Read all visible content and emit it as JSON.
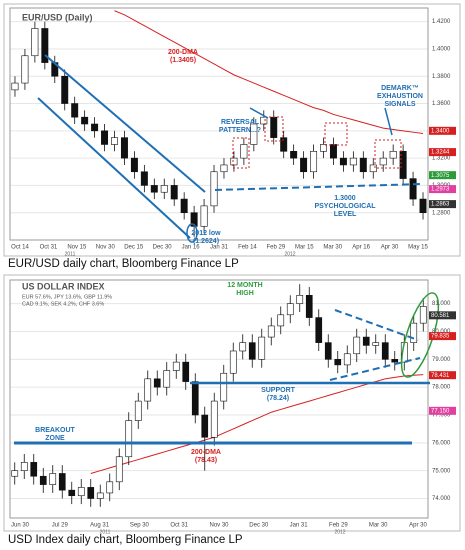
{
  "chart_data": [
    {
      "type": "candlestick",
      "title": "EUR/USD (Daily)",
      "caption": "EUR/USD daily chart, Bloomberg Finance LP",
      "open": [
        1.37,
        1.375,
        1.395,
        1.415,
        1.39,
        1.38,
        1.36,
        1.35,
        1.345,
        1.34,
        1.33,
        1.335,
        1.32,
        1.31,
        1.3,
        1.295,
        1.3,
        1.29,
        1.28,
        1.27,
        1.285,
        1.31,
        1.315,
        1.32,
        1.33,
        1.345,
        1.35,
        1.335,
        1.325,
        1.32,
        1.31,
        1.325,
        1.33,
        1.32,
        1.315,
        1.32,
        1.31,
        1.315,
        1.32,
        1.325,
        1.305,
        1.29
      ],
      "high": [
        1.38,
        1.4,
        1.42,
        1.42,
        1.395,
        1.385,
        1.365,
        1.355,
        1.35,
        1.345,
        1.34,
        1.34,
        1.325,
        1.315,
        1.305,
        1.305,
        1.305,
        1.295,
        1.285,
        1.29,
        1.315,
        1.32,
        1.325,
        1.335,
        1.35,
        1.355,
        1.355,
        1.34,
        1.33,
        1.325,
        1.33,
        1.335,
        1.335,
        1.325,
        1.325,
        1.325,
        1.32,
        1.325,
        1.33,
        1.33,
        1.31,
        1.295
      ],
      "low": [
        1.365,
        1.37,
        1.39,
        1.385,
        1.375,
        1.355,
        1.345,
        1.34,
        1.335,
        1.325,
        1.325,
        1.315,
        1.305,
        1.295,
        1.29,
        1.29,
        1.285,
        1.275,
        1.2624,
        1.265,
        1.28,
        1.305,
        1.31,
        1.315,
        1.325,
        1.34,
        1.33,
        1.32,
        1.315,
        1.305,
        1.305,
        1.32,
        1.315,
        1.31,
        1.31,
        1.305,
        1.305,
        1.31,
        1.315,
        1.3,
        1.285,
        1.275
      ],
      "close": [
        1.375,
        1.395,
        1.415,
        1.39,
        1.38,
        1.36,
        1.35,
        1.345,
        1.34,
        1.33,
        1.335,
        1.32,
        1.31,
        1.3,
        1.295,
        1.3,
        1.29,
        1.28,
        1.27,
        1.285,
        1.31,
        1.315,
        1.32,
        1.33,
        1.345,
        1.35,
        1.335,
        1.325,
        1.32,
        1.31,
        1.325,
        1.33,
        1.32,
        1.315,
        1.32,
        1.31,
        1.315,
        1.32,
        1.325,
        1.305,
        1.29,
        1.28
      ],
      "series": [
        {
          "name": "200-DMA",
          "color": "#d62020",
          "values": [
            null,
            null,
            null,
            null,
            null,
            null,
            null,
            null,
            null,
            null,
            1.428,
            1.425,
            1.421,
            1.417,
            1.413,
            1.409,
            1.405,
            1.401,
            1.397,
            1.393,
            1.389,
            1.385,
            1.381,
            1.378,
            1.375,
            1.372,
            1.369,
            1.366,
            1.363,
            1.36,
            1.357,
            1.355,
            1.352,
            1.35,
            1.348,
            1.346,
            1.344,
            1.342,
            1.341,
            1.34,
            1.339,
            1.338
          ]
        }
      ],
      "ylim": [
        1.26,
        1.43
      ],
      "yticks": [
        {
          "value": 1.28,
          "label": "1.2800"
        },
        {
          "value": 1.3,
          "label": "1.3000"
        },
        {
          "value": 1.32,
          "label": "1.3200"
        },
        {
          "value": 1.34,
          "label": "1.3400"
        },
        {
          "value": 1.36,
          "label": "1.3600"
        },
        {
          "value": 1.38,
          "label": "1.3800"
        },
        {
          "value": 1.4,
          "label": "1.4000"
        },
        {
          "value": 1.42,
          "label": "1.4200"
        }
      ],
      "price_tags": [
        {
          "value": 1.34,
          "label": "1.3400",
          "color": "#d62020"
        },
        {
          "value": 1.3244,
          "label": "1.3244",
          "color": "#d62020"
        },
        {
          "value": 1.3075,
          "label": "1.3075",
          "color": "#2e9b3a"
        },
        {
          "value": 1.2973,
          "label": "1.2973",
          "color": "#e040a0"
        },
        {
          "value": 1.2863,
          "label": "1.2863",
          "color": "#333333"
        }
      ],
      "xtick_labels": [
        "Oct 14",
        "Oct 31",
        "Nov 15",
        "Nov 30",
        "Dec 15",
        "Dec 30",
        "Jan 16",
        "Jan 31",
        "Feb 14",
        "Feb 29",
        "Mar 15",
        "Mar 30",
        "Apr 16",
        "Apr 30",
        "May 15"
      ],
      "year_labels": [
        "2011",
        "2012"
      ],
      "annotations": [
        {
          "lines": [
            "200-DMA",
            "(1.3405)"
          ],
          "color": "#d62020"
        },
        {
          "lines": [
            "REVERSAL",
            "PATTERN...?"
          ],
          "color": "#1f6fb5"
        },
        {
          "lines": [
            "DEMARK™",
            "EXHAUSTION",
            "SIGNALS"
          ],
          "color": "#1f6fb5"
        },
        {
          "lines": [
            "1.3000",
            "PSYCHOLOGICAL",
            "LEVEL"
          ],
          "color": "#1f6fb5"
        },
        {
          "lines": [
            "2012 low",
            "(1.2624)"
          ],
          "color": "#1f6fb5"
        }
      ]
    },
    {
      "type": "candlestick",
      "title": "US DOLLAR INDEX",
      "subtitle": [
        "EUR 57.6%, JPY 13.6%, GBP 11.9%",
        "CAD 9.1%, SEK 4.2%, CHF 3.6%"
      ],
      "caption": "USD Index daily chart, Bloomberg Finance LP",
      "open": [
        74.8,
        75.0,
        75.3,
        74.8,
        74.5,
        74.9,
        74.3,
        74.1,
        74.4,
        74.0,
        74.2,
        74.6,
        75.5,
        76.8,
        77.5,
        78.3,
        78.0,
        78.6,
        78.9,
        78.2,
        77.0,
        76.2,
        77.5,
        78.5,
        79.3,
        79.6,
        79.0,
        79.8,
        80.2,
        80.6,
        81.0,
        81.3,
        80.5,
        79.6,
        79.0,
        78.8,
        79.2,
        79.8,
        79.5,
        79.6,
        79.0,
        78.9,
        79.6,
        80.3
      ],
      "high": [
        75.3,
        75.6,
        75.6,
        75.1,
        75.2,
        75.2,
        74.6,
        74.7,
        74.7,
        74.5,
        74.9,
        75.8,
        77.1,
        77.8,
        78.6,
        78.6,
        78.9,
        79.2,
        79.2,
        78.5,
        77.3,
        77.8,
        78.8,
        79.6,
        79.9,
        79.9,
        80.1,
        80.5,
        80.9,
        81.3,
        81.7,
        81.6,
        80.8,
        79.9,
        79.3,
        79.5,
        80.1,
        80.1,
        79.9,
        79.9,
        79.3,
        79.9,
        80.6,
        81.2
      ],
      "low": [
        74.5,
        74.7,
        74.5,
        74.2,
        74.2,
        74.0,
        73.8,
        73.8,
        73.7,
        73.7,
        73.9,
        74.3,
        75.2,
        76.5,
        77.2,
        77.7,
        77.7,
        78.3,
        77.9,
        76.7,
        75.0,
        75.9,
        77.2,
        78.2,
        79.0,
        78.7,
        78.7,
        79.5,
        79.9,
        80.3,
        80.7,
        80.2,
        79.3,
        78.7,
        78.5,
        78.5,
        78.9,
        79.2,
        79.2,
        78.7,
        78.6,
        78.6,
        79.3,
        80.0
      ],
      "close": [
        75.0,
        75.3,
        74.8,
        74.5,
        74.9,
        74.3,
        74.1,
        74.4,
        74.0,
        74.2,
        74.6,
        75.5,
        76.8,
        77.5,
        78.3,
        78.0,
        78.6,
        78.9,
        78.2,
        77.0,
        76.2,
        77.5,
        78.5,
        79.3,
        79.6,
        79.0,
        79.8,
        80.2,
        80.6,
        81.0,
        81.3,
        80.5,
        79.6,
        79.0,
        78.8,
        79.2,
        79.8,
        79.5,
        79.6,
        79.0,
        78.9,
        79.6,
        80.3,
        80.9
      ],
      "series": [
        {
          "name": "200-DMA",
          "color": "#d62020",
          "values": [
            null,
            null,
            null,
            null,
            null,
            null,
            null,
            null,
            74.9,
            75.0,
            75.1,
            75.2,
            75.3,
            75.4,
            75.5,
            75.6,
            75.7,
            75.8,
            75.9,
            76.0,
            76.1,
            76.2,
            76.35,
            76.5,
            76.65,
            76.8,
            76.95,
            77.1,
            77.2,
            77.3,
            77.4,
            77.5,
            77.6,
            77.7,
            77.8,
            77.9,
            78.0,
            78.1,
            78.2,
            78.3,
            78.35,
            78.4,
            78.43,
            78.45
          ]
        }
      ],
      "ylim": [
        73.3,
        81.85
      ],
      "yticks": [
        {
          "value": 74,
          "label": "74.000"
        },
        {
          "value": 75,
          "label": "75.000"
        },
        {
          "value": 76,
          "label": "76.000"
        },
        {
          "value": 77,
          "label": "77.000"
        },
        {
          "value": 78,
          "label": "78.000"
        },
        {
          "value": 79,
          "label": "79.000"
        },
        {
          "value": 80,
          "label": "80.000"
        },
        {
          "value": 81,
          "label": "81.000"
        }
      ],
      "price_tags": [
        {
          "value": 80.581,
          "label": "80.581",
          "color": "#333333"
        },
        {
          "value": 79.835,
          "label": "79.835",
          "color": "#d62020"
        },
        {
          "value": 78.431,
          "label": "78.431",
          "color": "#d62020"
        },
        {
          "value": 77.15,
          "label": "77.150",
          "color": "#e040a0"
        }
      ],
      "xtick_labels": [
        "Jun 30",
        "Jul 29",
        "Aug 31",
        "Sep 30",
        "Oct 31",
        "Nov 30",
        "Dec 30",
        "Jan 31",
        "Feb 29",
        "Mar 30",
        "Apr 30"
      ],
      "year_labels": [
        "2011",
        "2012"
      ],
      "annotations": [
        {
          "lines": [
            "12 MONTH",
            "HIGH"
          ],
          "color": "#2e9b3a"
        },
        {
          "lines": [
            "SUPPORT",
            "(78.24)"
          ],
          "color": "#1f6fb5"
        },
        {
          "lines": [
            "BREAKOUT",
            "ZONE"
          ],
          "color": "#1f6fb5"
        },
        {
          "lines": [
            "200-DMA",
            "(78.43)"
          ],
          "color": "#d62020"
        }
      ]
    }
  ]
}
